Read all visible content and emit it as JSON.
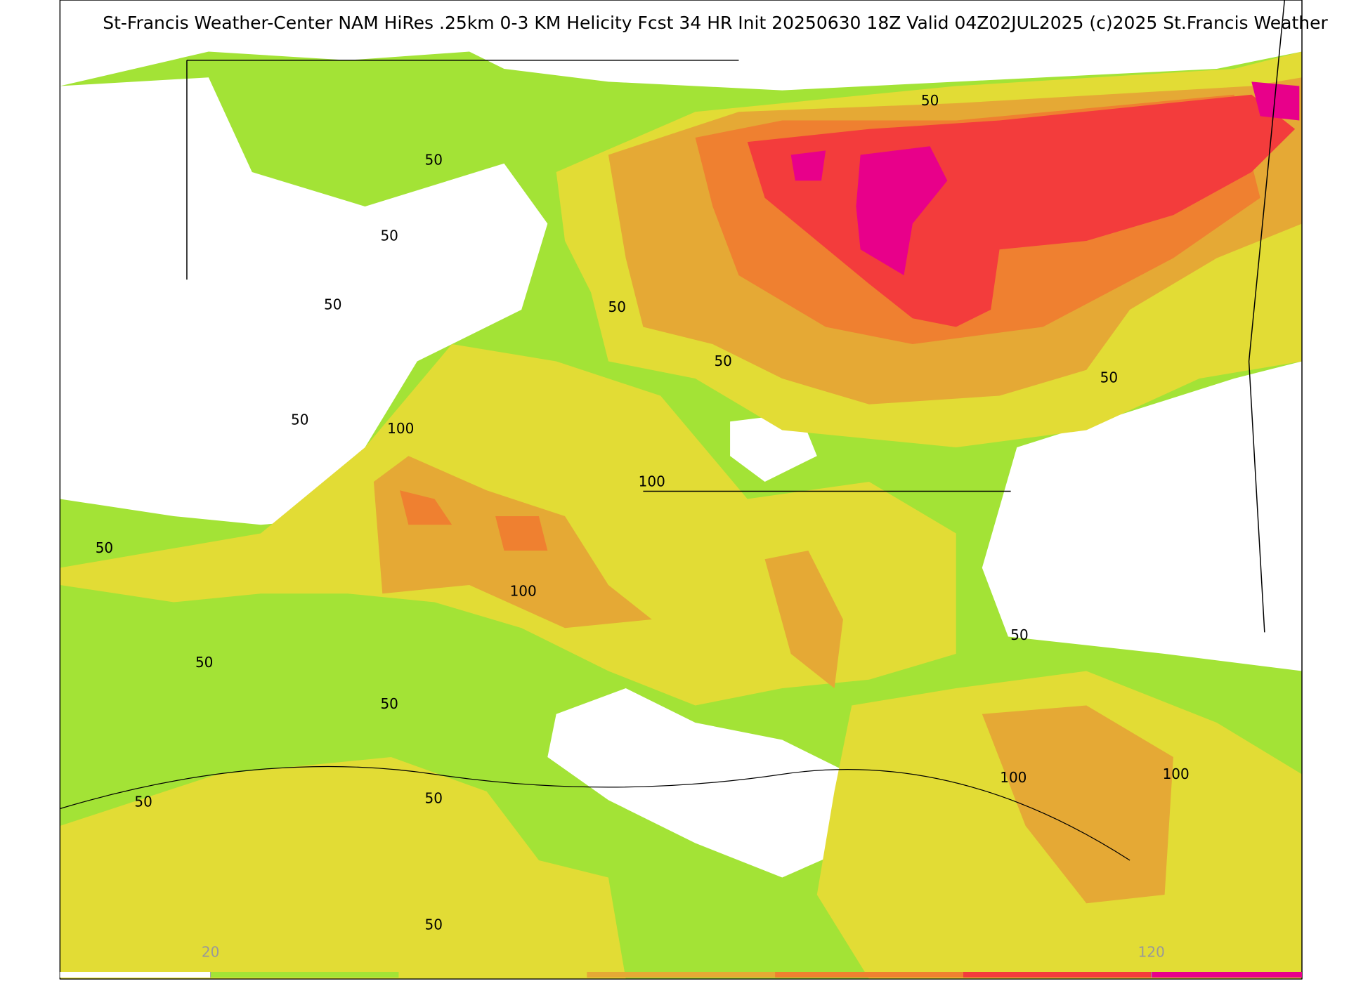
{
  "title": "St-Francis Weather-Center NAM HiRes .25km 0-3 KM Helicity Fcst 34 HR Init 20250630 18Z  Valid 04Z02JUL2025    (c)2025 St.Francis Weather",
  "map": {
    "contour_labels": [
      50,
      50,
      50,
      50,
      50,
      50,
      50,
      50,
      100,
      100,
      50,
      100,
      50,
      50,
      50,
      100,
      100,
      50,
      50,
      50
    ]
  },
  "colorbar": {
    "colors": [
      "#ffffff",
      "#a3e336",
      "#e2dc35",
      "#e5a935",
      "#ef8030",
      "#f33c3c",
      "#e8008a"
    ],
    "bins": [
      4,
      20,
      40,
      60,
      80,
      100,
      120,
      136
    ],
    "ticks": [
      20,
      120
    ]
  }
}
